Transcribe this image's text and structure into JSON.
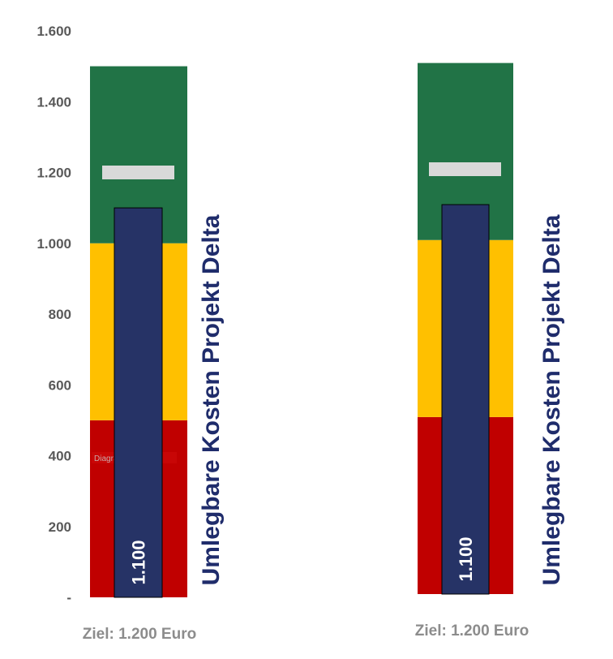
{
  "chart_data": [
    {
      "type": "bullet",
      "orientation": "vertical",
      "ylim": [
        0,
        1600
      ],
      "y_ticks": [
        0,
        200,
        400,
        600,
        800,
        1000,
        1200,
        1400,
        1600
      ],
      "y_tick_labels": [
        "-",
        "200",
        "400",
        "600",
        "800",
        "1.000",
        "1.200",
        "1.400",
        "1.600"
      ],
      "bands": [
        {
          "from": 0,
          "to": 500,
          "color": "#c00000"
        },
        {
          "from": 500,
          "to": 1000,
          "color": "#ffc000"
        },
        {
          "from": 1000,
          "to": 1500,
          "color": "#217346"
        }
      ],
      "value": 1100,
      "value_label": "1.100",
      "bar_color": "#263366",
      "target": 1200,
      "target_color": "#d9d9d9",
      "label": "Umlegbare Kosten Projekt Delta",
      "caption": "Ziel: 1.200 Euro",
      "watermark": "Diagrammbereich"
    },
    {
      "type": "bullet",
      "orientation": "vertical",
      "ylim": [
        0,
        1600
      ],
      "bands": [
        {
          "from": 0,
          "to": 500,
          "color": "#c00000"
        },
        {
          "from": 500,
          "to": 1000,
          "color": "#ffc000"
        },
        {
          "from": 1000,
          "to": 1500,
          "color": "#217346"
        }
      ],
      "value": 1100,
      "value_label": "1.100",
      "bar_color": "#263366",
      "target": 1200,
      "target_color": "#d9d9d9",
      "label": "Umlegbare Kosten Projekt Delta",
      "caption": "Ziel: 1.200 Euro"
    }
  ]
}
